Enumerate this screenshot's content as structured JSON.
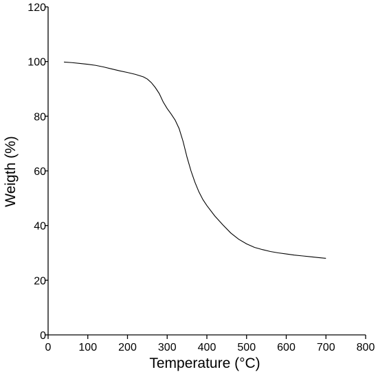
{
  "chart_data": {
    "type": "line",
    "title": "",
    "xlabel": "Temperature (°C)",
    "ylabel": "Weigth (%)",
    "xlim": [
      0,
      800
    ],
    "ylim": [
      0,
      120
    ],
    "xticks": [
      0,
      100,
      200,
      300,
      400,
      500,
      600,
      700,
      800
    ],
    "yticks": [
      0,
      20,
      40,
      60,
      80,
      100,
      120
    ],
    "xtick_labels": [
      "0",
      "100",
      "200",
      "300",
      "400",
      "500",
      "600",
      "700",
      "800"
    ],
    "ytick_labels": [
      "0",
      "20",
      "40",
      "60",
      "80",
      "100",
      "120"
    ],
    "grid": false,
    "legend": "none",
    "series": [
      {
        "color": "#000000",
        "x": [
          40,
          60,
          80,
          100,
          120,
          140,
          160,
          180,
          200,
          220,
          240,
          250,
          260,
          270,
          280,
          290,
          300,
          310,
          320,
          330,
          340,
          350,
          360,
          370,
          380,
          390,
          400,
          420,
          440,
          460,
          480,
          500,
          520,
          540,
          560,
          580,
          600,
          620,
          640,
          660,
          680,
          700
        ],
        "y": [
          99.8,
          99.6,
          99.3,
          99.0,
          98.6,
          98.0,
          97.3,
          96.6,
          96.0,
          95.3,
          94.4,
          93.6,
          92.3,
          90.5,
          88.3,
          85.2,
          82.8,
          80.8,
          78.6,
          75.5,
          70.8,
          65.0,
          60.0,
          55.8,
          52.3,
          49.5,
          47.3,
          43.5,
          40.3,
          37.3,
          35.0,
          33.3,
          32.0,
          31.2,
          30.5,
          30.0,
          29.6,
          29.2,
          28.9,
          28.6,
          28.3,
          28.0
        ]
      }
    ]
  }
}
